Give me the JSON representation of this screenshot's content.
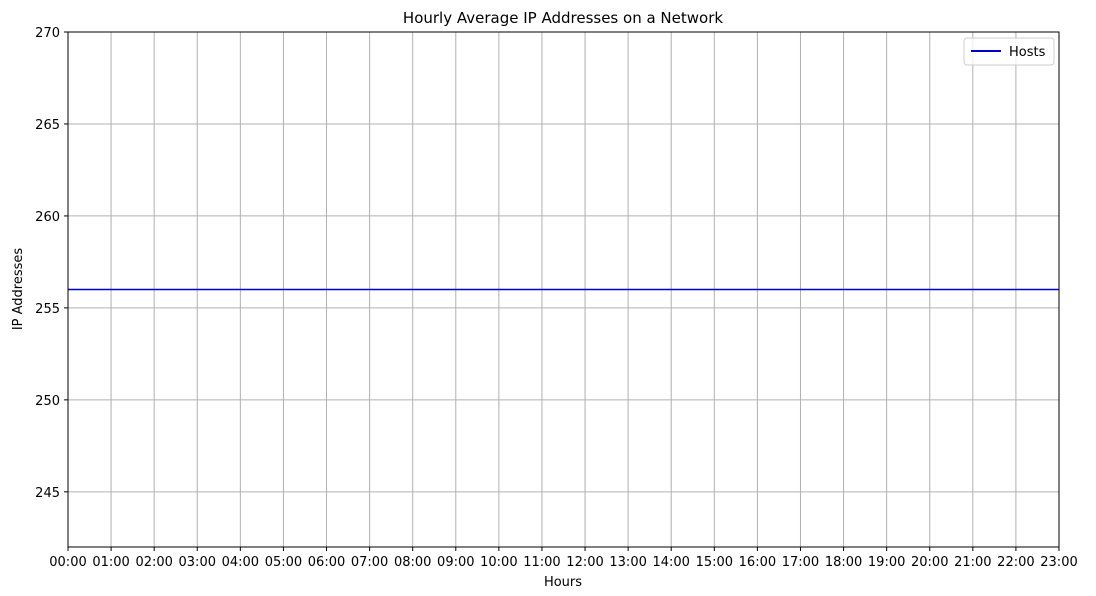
{
  "chart_data": {
    "type": "line",
    "title": "Hourly Average IP Addresses on a Network",
    "xlabel": "Hours",
    "ylabel": "IP Addresses",
    "categories": [
      "00:00",
      "01:00",
      "02:00",
      "03:00",
      "04:00",
      "05:00",
      "06:00",
      "07:00",
      "08:00",
      "09:00",
      "10:00",
      "11:00",
      "12:00",
      "13:00",
      "14:00",
      "15:00",
      "16:00",
      "17:00",
      "18:00",
      "19:00",
      "20:00",
      "21:00",
      "22:00",
      "23:00"
    ],
    "series": [
      {
        "name": "Hosts",
        "color": "#0000cc",
        "values": [
          256,
          256,
          256,
          256,
          256,
          256,
          256,
          256,
          256,
          256,
          256,
          256,
          256,
          256,
          256,
          256,
          256,
          256,
          256,
          256,
          256,
          256,
          256,
          256
        ]
      }
    ],
    "ylim": [
      242,
      270
    ],
    "yticks": [
      245,
      250,
      255,
      260,
      265,
      270
    ],
    "grid": true,
    "legend_position": "top-right",
    "colors": {
      "grid": "#b0b0b0",
      "axis": "#000000"
    }
  }
}
